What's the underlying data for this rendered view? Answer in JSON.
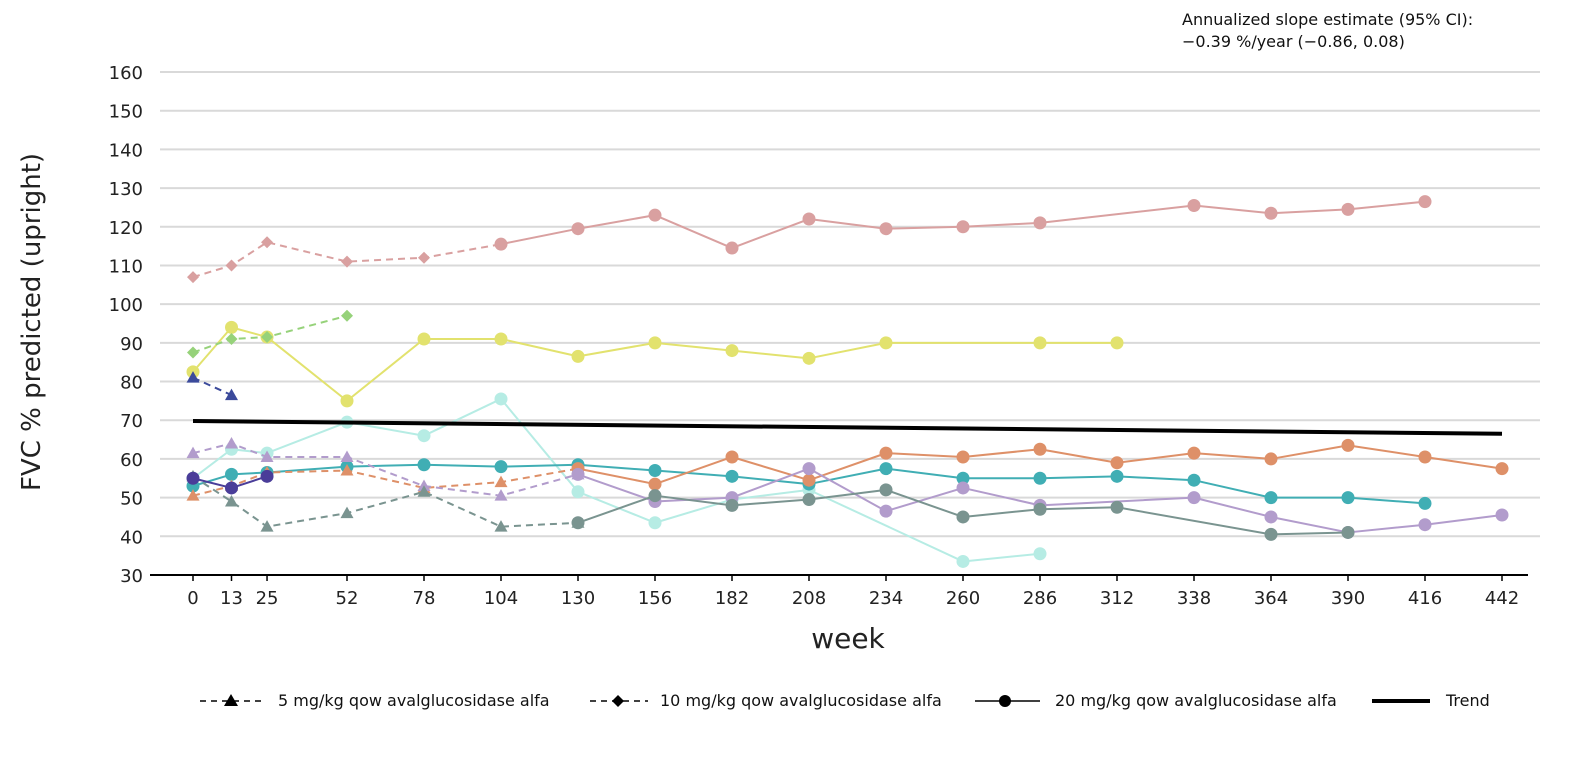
{
  "chart_data": {
    "type": "line",
    "title": "",
    "xlabel": "week",
    "ylabel": "FVC % predicted (upright)",
    "x_ticks": [
      0,
      13,
      25,
      52,
      78,
      104,
      130,
      156,
      182,
      208,
      234,
      260,
      286,
      312,
      338,
      364,
      390,
      416,
      442
    ],
    "x_tick_labels": [
      "0",
      "13",
      "25",
      "52",
      "78",
      "104",
      "130",
      "156",
      "182",
      "208",
      "234",
      "260",
      "286",
      "312",
      "338",
      "364",
      "390",
      "416",
      "442"
    ],
    "y_ticks": [
      30,
      40,
      50,
      60,
      70,
      80,
      90,
      100,
      110,
      120,
      130,
      140,
      150,
      160
    ],
    "y_tick_labels": [
      "30",
      "40",
      "50",
      "60",
      "70",
      "80",
      "90",
      "100",
      "110",
      "120",
      "130",
      "140",
      "150",
      "160"
    ],
    "ylim": [
      30,
      160
    ],
    "grid": "horizontal",
    "annotation": [
      "Annualized slope estimate (95% CI):",
      "−0.39 %/year (−0.86, 0.08)"
    ],
    "legend": {
      "placement": "bottom",
      "entries": [
        {
          "label": "5 mg/kg qow avalglucosidase alfa",
          "marker": "triangle",
          "dash": "dashed"
        },
        {
          "label": "10 mg/kg qow avalglucosidase alfa",
          "marker": "diamond",
          "dash": "dashed"
        },
        {
          "label": "20 mg/kg qow avalglucosidase alfa",
          "marker": "circle",
          "dash": "solid"
        },
        {
          "label": "Trend",
          "marker": "none",
          "dash": "solid-thick"
        }
      ]
    },
    "series": [
      {
        "color": "#d9a0a0",
        "segments": [
          {
            "dash": "dashed",
            "marker": "diamond",
            "points": [
              [
                0,
                107
              ],
              [
                13,
                110
              ],
              [
                25,
                116
              ],
              [
                52,
                111
              ],
              [
                78,
                112
              ],
              [
                104,
                115.5
              ]
            ]
          },
          {
            "dash": "solid",
            "marker": "circle",
            "points": [
              [
                104,
                115.5
              ],
              [
                130,
                119.5
              ],
              [
                156,
                123
              ],
              [
                182,
                114.5
              ],
              [
                208,
                122
              ],
              [
                234,
                119.5
              ],
              [
                260,
                120
              ],
              [
                286,
                121
              ],
              [
                338,
                125.5
              ],
              [
                364,
                123.5
              ],
              [
                390,
                124.5
              ],
              [
                416,
                126.5
              ]
            ]
          }
        ]
      },
      {
        "color": "#e2e26e",
        "segments": [
          {
            "dash": "solid",
            "marker": "circle",
            "points": [
              [
                0,
                82.5
              ],
              [
                13,
                94
              ],
              [
                25,
                91.5
              ],
              [
                52,
                75
              ],
              [
                78,
                91
              ],
              [
                104,
                91
              ],
              [
                130,
                86.5
              ],
              [
                156,
                90
              ],
              [
                182,
                88
              ],
              [
                208,
                86
              ],
              [
                234,
                90
              ],
              [
                286,
                90
              ],
              [
                312,
                90
              ]
            ]
          }
        ]
      },
      {
        "color": "#96d27a",
        "segments": [
          {
            "dash": "dashed",
            "marker": "diamond",
            "points": [
              [
                0,
                87.5
              ],
              [
                13,
                91
              ],
              [
                25,
                91.5
              ],
              [
                52,
                97
              ]
            ]
          }
        ]
      },
      {
        "color": "#3b4a9b",
        "segments": [
          {
            "dash": "dashed",
            "marker": "triangle",
            "points": [
              [
                0,
                81
              ],
              [
                13,
                76.5
              ]
            ]
          }
        ]
      },
      {
        "color": "#b6ece4",
        "segments": [
          {
            "dash": "solid",
            "marker": "circle",
            "points": [
              [
                0,
                55
              ],
              [
                13,
                62.5
              ],
              [
                25,
                61.5
              ],
              [
                52,
                69.5
              ],
              [
                78,
                66
              ],
              [
                104,
                75.5
              ],
              [
                130,
                51.5
              ],
              [
                156,
                43.5
              ],
              [
                182,
                49.5
              ],
              [
                208,
                52
              ],
              [
                260,
                33.5
              ],
              [
                286,
                35.5
              ]
            ]
          }
        ]
      },
      {
        "color": "#40aeb4",
        "segments": [
          {
            "dash": "solid",
            "marker": "circle",
            "points": [
              [
                0,
                53
              ],
              [
                13,
                56
              ],
              [
                25,
                56.5
              ],
              [
                52,
                58
              ],
              [
                78,
                58.5
              ],
              [
                104,
                58
              ],
              [
                130,
                58.5
              ],
              [
                156,
                57
              ],
              [
                182,
                55.5
              ],
              [
                208,
                53.5
              ],
              [
                234,
                57.5
              ],
              [
                260,
                55
              ],
              [
                286,
                55
              ],
              [
                312,
                55.5
              ],
              [
                338,
                54.5
              ],
              [
                364,
                50
              ],
              [
                390,
                50
              ],
              [
                416,
                48.5
              ]
            ]
          }
        ]
      },
      {
        "color": "#de9068",
        "segments": [
          {
            "dash": "dashed",
            "marker": "triangle",
            "points": [
              [
                0,
                50.5
              ],
              [
                13,
                53
              ],
              [
                25,
                56.5
              ],
              [
                52,
                57
              ],
              [
                78,
                52.5
              ],
              [
                104,
                54
              ],
              [
                130,
                57.5
              ]
            ]
          },
          {
            "dash": "solid",
            "marker": "circle",
            "points": [
              [
                130,
                57.5
              ],
              [
                156,
                53.5
              ],
              [
                182,
                60.5
              ],
              [
                208,
                54.5
              ],
              [
                234,
                61.5
              ],
              [
                260,
                60.5
              ],
              [
                286,
                62.5
              ],
              [
                312,
                59
              ],
              [
                338,
                61.5
              ],
              [
                364,
                60
              ],
              [
                390,
                63.5
              ],
              [
                416,
                60.5
              ],
              [
                442,
                57.5
              ]
            ]
          }
        ]
      },
      {
        "color": "#b29ccc",
        "segments": [
          {
            "dash": "dashed",
            "marker": "triangle",
            "points": [
              [
                0,
                61.5
              ],
              [
                13,
                64
              ],
              [
                25,
                60.5
              ],
              [
                52,
                60.5
              ],
              [
                78,
                53
              ],
              [
                104,
                50.5
              ],
              [
                130,
                56
              ]
            ]
          },
          {
            "dash": "solid",
            "marker": "circle",
            "points": [
              [
                130,
                56
              ],
              [
                156,
                49
              ],
              [
                182,
                50
              ],
              [
                208,
                57.5
              ],
              [
                234,
                46.5
              ],
              [
                260,
                52.5
              ],
              [
                286,
                48
              ],
              [
                338,
                50
              ],
              [
                364,
                45
              ],
              [
                390,
                41
              ],
              [
                416,
                43
              ],
              [
                442,
                45.5
              ]
            ]
          }
        ]
      },
      {
        "color": "#7a9490",
        "segments": [
          {
            "dash": "dashed",
            "marker": "triangle",
            "points": [
              [
                0,
                55.5
              ],
              [
                13,
                49
              ],
              [
                25,
                42.5
              ],
              [
                52,
                46
              ],
              [
                78,
                51.5
              ],
              [
                104,
                42.5
              ],
              [
                130,
                43.5
              ]
            ]
          },
          {
            "dash": "solid",
            "marker": "circle",
            "points": [
              [
                130,
                43.5
              ],
              [
                156,
                50.5
              ],
              [
                182,
                48
              ],
              [
                208,
                49.5
              ],
              [
                234,
                52
              ],
              [
                260,
                45
              ],
              [
                286,
                47
              ],
              [
                312,
                47.5
              ],
              [
                364,
                40.5
              ],
              [
                390,
                41
              ]
            ]
          }
        ]
      },
      {
        "color": "#4a3d99",
        "segments": [
          {
            "dash": "solid",
            "marker": "circle",
            "points": [
              [
                0,
                55
              ],
              [
                13,
                52.5
              ],
              [
                25,
                55.5
              ]
            ]
          }
        ]
      }
    ],
    "trend": {
      "color": "#000000",
      "points": [
        [
          0,
          69.8
        ],
        [
          442,
          66.5
        ]
      ]
    }
  }
}
